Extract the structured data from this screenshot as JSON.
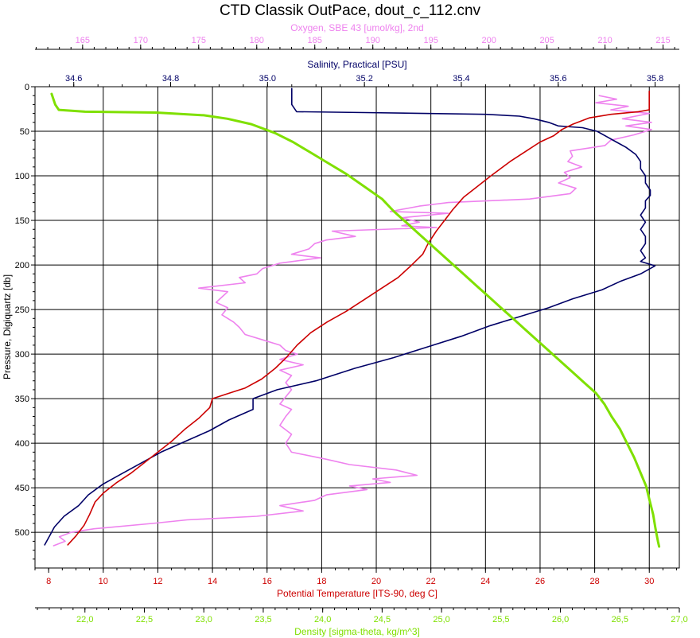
{
  "chart_data": {
    "type": "line",
    "title": "CTD Classik OutPace, dout_c_112.cnv",
    "grid": true,
    "y_axis": {
      "label": "Pressure, Digiquartz [db]",
      "range": [
        0,
        540
      ],
      "inverted": true,
      "ticks": [
        0,
        50,
        100,
        150,
        200,
        250,
        300,
        350,
        400,
        450,
        500
      ]
    },
    "x_axes": [
      {
        "id": "oxygen",
        "label": "Oxygen, SBE 43 [umol/kg], 2nd",
        "color": "#ee82ee",
        "position": "top-outer",
        "range": [
          160.9,
          216.4
        ],
        "ticks": [
          "165",
          "170",
          "175",
          "180",
          "185",
          "190",
          "195",
          "200",
          "205",
          "210",
          "215"
        ]
      },
      {
        "id": "salinity",
        "label": "Salinity, Practical [PSU]",
        "color": "#000066",
        "position": "top-inner",
        "range": [
          34.52,
          35.85
        ],
        "ticks": [
          "34.6",
          "34.8",
          "35.0",
          "35.2",
          "35.4",
          "35.6",
          "35.8"
        ]
      },
      {
        "id": "temperature",
        "label": "Potential Temperature [ITS-90, deg C]",
        "color": "#cc0000",
        "position": "bottom-inner",
        "range": [
          7.5,
          31.1
        ],
        "ticks": [
          "8",
          "10",
          "12",
          "14",
          "16",
          "18",
          "20",
          "22",
          "24",
          "26",
          "28",
          "30"
        ]
      },
      {
        "id": "density",
        "label": "Density [sigma-theta, kg/m^3]",
        "color": "#7fe000",
        "position": "bottom-outer",
        "range": [
          21.58,
          27.0
        ],
        "ticks": [
          "22,0",
          "22,5",
          "23,0",
          "23,5",
          "24,0",
          "24,5",
          "25,0",
          "25,5",
          "26,0",
          "26,5",
          "27,0"
        ]
      }
    ],
    "series": [
      {
        "axis": "oxygen",
        "color": "#ee82ee",
        "points": [
          [
            209.5,
            10
          ],
          [
            211.0,
            14
          ],
          [
            209.2,
            18
          ],
          [
            212.0,
            22
          ],
          [
            210.5,
            26
          ],
          [
            213.8,
            30
          ],
          [
            211.5,
            36
          ],
          [
            214.0,
            40
          ],
          [
            211.8,
            44
          ],
          [
            214.0,
            48
          ],
          [
            212.5,
            54
          ],
          [
            210.5,
            60
          ],
          [
            210.0,
            66
          ],
          [
            207.0,
            72
          ],
          [
            207.2,
            78
          ],
          [
            206.8,
            84
          ],
          [
            208.0,
            90
          ],
          [
            206.5,
            96
          ],
          [
            207.0,
            102
          ],
          [
            206.0,
            108
          ],
          [
            207.5,
            114
          ],
          [
            207.0,
            120
          ],
          [
            203.5,
            126
          ],
          [
            196.5,
            130
          ],
          [
            194.0,
            134
          ],
          [
            191.5,
            140
          ],
          [
            196.5,
            142
          ],
          [
            192.5,
            147
          ],
          [
            194.0,
            152
          ],
          [
            192.5,
            156
          ],
          [
            195.5,
            158
          ],
          [
            186.5,
            162
          ],
          [
            188.5,
            168
          ],
          [
            186.0,
            172
          ],
          [
            185.0,
            176
          ],
          [
            184.5,
            182
          ],
          [
            183.0,
            188
          ],
          [
            185.5,
            192
          ],
          [
            182.0,
            198
          ],
          [
            180.5,
            204
          ],
          [
            180.0,
            210
          ],
          [
            178.5,
            214
          ],
          [
            179.0,
            220
          ],
          [
            175.0,
            226
          ],
          [
            177.5,
            230
          ],
          [
            177.0,
            236
          ],
          [
            176.5,
            242
          ],
          [
            177.5,
            248
          ],
          [
            177.0,
            256
          ],
          [
            178.0,
            264
          ],
          [
            178.5,
            270
          ],
          [
            179.0,
            278
          ],
          [
            180.5,
            284
          ],
          [
            182.0,
            290
          ],
          [
            182.5,
            296
          ],
          [
            183.5,
            300
          ],
          [
            182.0,
            306
          ],
          [
            184.0,
            312
          ],
          [
            182.0,
            318
          ],
          [
            183.0,
            324
          ],
          [
            182.5,
            332
          ],
          [
            183.0,
            340
          ],
          [
            182.5,
            348
          ],
          [
            182.0,
            356
          ],
          [
            183.0,
            362
          ],
          [
            182.5,
            370
          ],
          [
            182.0,
            380
          ],
          [
            183.0,
            390
          ],
          [
            182.5,
            400
          ],
          [
            183.0,
            410
          ],
          [
            186.0,
            418
          ],
          [
            188.0,
            424
          ],
          [
            192.0,
            430
          ],
          [
            193.8,
            436
          ],
          [
            190.0,
            440
          ],
          [
            191.5,
            444
          ],
          [
            188.0,
            448
          ],
          [
            189.5,
            452
          ],
          [
            186.0,
            458
          ],
          [
            185.0,
            464
          ],
          [
            182.0,
            470
          ],
          [
            184.0,
            476
          ],
          [
            180.0,
            482
          ],
          [
            174.0,
            486
          ],
          [
            171.0,
            490
          ],
          [
            166.0,
            496
          ],
          [
            164.0,
            500
          ],
          [
            163.0,
            505
          ],
          [
            163.5,
            510
          ],
          [
            162.5,
            515
          ]
        ]
      },
      {
        "axis": "salinity",
        "color": "#000066",
        "points": [
          [
            35.05,
            2
          ],
          [
            35.05,
            20
          ],
          [
            35.06,
            28
          ],
          [
            35.2,
            29
          ],
          [
            35.45,
            31
          ],
          [
            35.52,
            33
          ],
          [
            35.55,
            36
          ],
          [
            35.58,
            40
          ],
          [
            35.6,
            44
          ],
          [
            35.65,
            46
          ],
          [
            35.68,
            50
          ],
          [
            35.7,
            56
          ],
          [
            35.72,
            62
          ],
          [
            35.74,
            68
          ],
          [
            35.76,
            76
          ],
          [
            35.77,
            84
          ],
          [
            35.77,
            92
          ],
          [
            35.78,
            100
          ],
          [
            35.78,
            108
          ],
          [
            35.79,
            116
          ],
          [
            35.79,
            122
          ],
          [
            35.78,
            128
          ],
          [
            35.78,
            136
          ],
          [
            35.77,
            144
          ],
          [
            35.78,
            152
          ],
          [
            35.77,
            160
          ],
          [
            35.78,
            168
          ],
          [
            35.78,
            176
          ],
          [
            35.77,
            184
          ],
          [
            35.78,
            192
          ],
          [
            35.77,
            196
          ],
          [
            35.8,
            201
          ],
          [
            35.77,
            210
          ],
          [
            35.73,
            218
          ],
          [
            35.69,
            228
          ],
          [
            35.63,
            238
          ],
          [
            35.58,
            248
          ],
          [
            35.52,
            258
          ],
          [
            35.46,
            268
          ],
          [
            35.4,
            280
          ],
          [
            35.33,
            292
          ],
          [
            35.26,
            304
          ],
          [
            35.18,
            316
          ],
          [
            35.1,
            330
          ],
          [
            35.02,
            340
          ],
          [
            34.97,
            350
          ],
          [
            34.97,
            362
          ],
          [
            34.92,
            374
          ],
          [
            34.88,
            386
          ],
          [
            34.83,
            398
          ],
          [
            34.78,
            410
          ],
          [
            34.74,
            422
          ],
          [
            34.7,
            434
          ],
          [
            34.66,
            446
          ],
          [
            34.63,
            458
          ],
          [
            34.61,
            470
          ],
          [
            34.58,
            482
          ],
          [
            34.56,
            494
          ],
          [
            34.55,
            504
          ],
          [
            34.54,
            514
          ]
        ]
      },
      {
        "axis": "temperature",
        "color": "#cc0000",
        "points": [
          [
            30.0,
            5
          ],
          [
            30.0,
            26
          ],
          [
            29.6,
            28
          ],
          [
            28.6,
            31
          ],
          [
            27.8,
            35
          ],
          [
            27.2,
            42
          ],
          [
            26.8,
            48
          ],
          [
            26.5,
            55
          ],
          [
            26.0,
            62
          ],
          [
            25.5,
            72
          ],
          [
            24.9,
            84
          ],
          [
            24.2,
            100
          ],
          [
            23.7,
            112
          ],
          [
            23.2,
            124
          ],
          [
            22.8,
            138
          ],
          [
            22.5,
            150
          ],
          [
            22.2,
            162
          ],
          [
            21.9,
            176
          ],
          [
            21.7,
            188
          ],
          [
            21.3,
            200
          ],
          [
            20.8,
            214
          ],
          [
            20.1,
            228
          ],
          [
            19.5,
            240
          ],
          [
            18.9,
            252
          ],
          [
            18.2,
            264
          ],
          [
            17.6,
            276
          ],
          [
            17.1,
            290
          ],
          [
            16.7,
            304
          ],
          [
            16.3,
            316
          ],
          [
            15.8,
            328
          ],
          [
            15.2,
            338
          ],
          [
            14.6,
            344
          ],
          [
            14.0,
            350
          ],
          [
            13.9,
            360
          ],
          [
            13.5,
            372
          ],
          [
            13.0,
            384
          ],
          [
            12.5,
            398
          ],
          [
            12.0,
            410
          ],
          [
            11.5,
            422
          ],
          [
            11.0,
            434
          ],
          [
            10.5,
            444
          ],
          [
            10.0,
            456
          ],
          [
            9.7,
            466
          ],
          [
            9.5,
            480
          ],
          [
            9.3,
            492
          ],
          [
            9.0,
            504
          ],
          [
            8.7,
            514
          ]
        ]
      },
      {
        "axis": "density",
        "color": "#7fe000",
        "points": [
          [
            21.72,
            8
          ],
          [
            21.75,
            20
          ],
          [
            21.78,
            26
          ],
          [
            22.0,
            28
          ],
          [
            22.6,
            29
          ],
          [
            23.0,
            32
          ],
          [
            23.2,
            36
          ],
          [
            23.4,
            42
          ],
          [
            23.6,
            52
          ],
          [
            23.75,
            62
          ],
          [
            23.9,
            74
          ],
          [
            24.05,
            86
          ],
          [
            24.2,
            98
          ],
          [
            24.35,
            112
          ],
          [
            24.5,
            126
          ],
          [
            24.6,
            140
          ],
          [
            24.7,
            152
          ],
          [
            24.8,
            164
          ],
          [
            24.9,
            176
          ],
          [
            25.0,
            188
          ],
          [
            25.1,
            200
          ],
          [
            25.2,
            212
          ],
          [
            25.3,
            224
          ],
          [
            25.4,
            236
          ],
          [
            25.5,
            248
          ],
          [
            25.6,
            260
          ],
          [
            25.7,
            272
          ],
          [
            25.8,
            284
          ],
          [
            25.9,
            296
          ],
          [
            26.0,
            308
          ],
          [
            26.1,
            320
          ],
          [
            26.2,
            332
          ],
          [
            26.3,
            344
          ],
          [
            26.37,
            356
          ],
          [
            26.43,
            370
          ],
          [
            26.5,
            384
          ],
          [
            26.56,
            400
          ],
          [
            26.62,
            416
          ],
          [
            26.67,
            432
          ],
          [
            26.72,
            448
          ],
          [
            26.75,
            464
          ],
          [
            26.78,
            480
          ],
          [
            26.8,
            496
          ],
          [
            26.82,
            510
          ],
          [
            26.83,
            516
          ]
        ]
      }
    ]
  }
}
